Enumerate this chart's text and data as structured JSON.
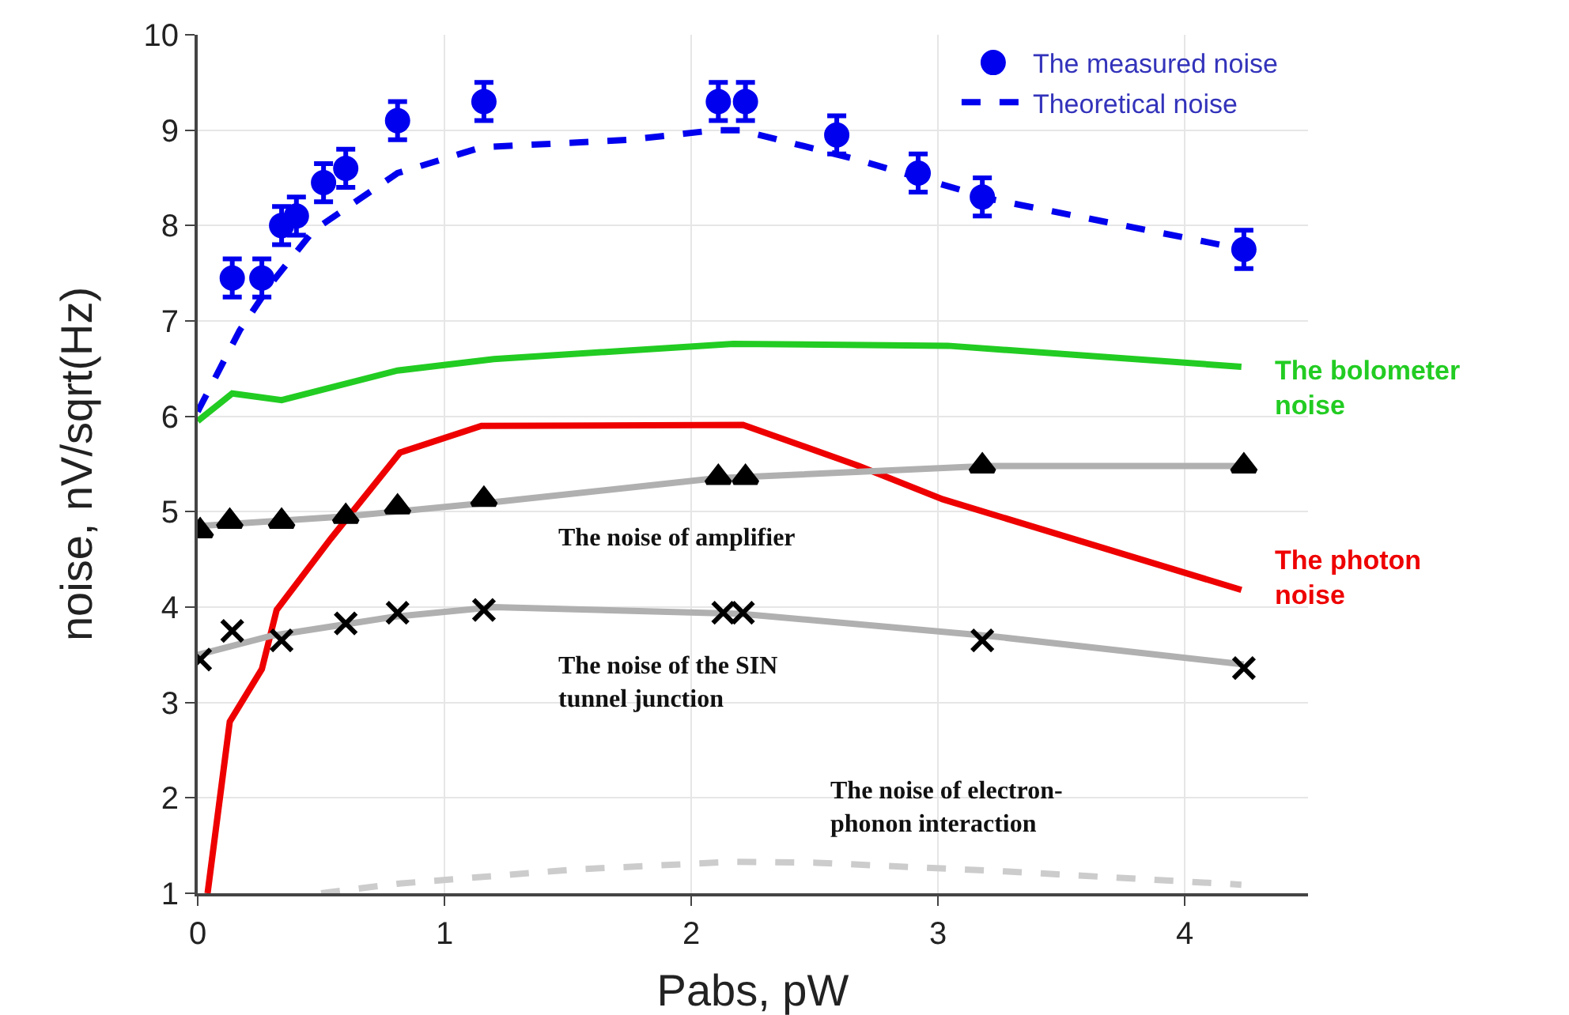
{
  "chart_data": {
    "type": "line",
    "xlabel": "Pabs, pW",
    "ylabel": "noise, nV/sqrt(Hz)",
    "xlim": [
      0,
      4.5
    ],
    "xticks": [
      0,
      1,
      2,
      3,
      4
    ],
    "ylim": [
      1,
      10
    ],
    "yticks": [
      1,
      2,
      3,
      4,
      5,
      6,
      7,
      8,
      9,
      10
    ],
    "grid": true,
    "legend": "top right",
    "series": [
      {
        "name": "The measured noise",
        "type": "scatter",
        "marker": "circle",
        "color": "#0000ee",
        "x": [
          0.14,
          0.26,
          0.34,
          0.4,
          0.51,
          0.6,
          0.81,
          1.16,
          2.11,
          2.22,
          2.59,
          2.92,
          3.18,
          4.24
        ],
        "values": [
          7.45,
          7.45,
          8.0,
          8.1,
          8.45,
          8.6,
          9.1,
          9.3,
          9.3,
          9.3,
          8.95,
          8.55,
          8.3,
          7.75
        ],
        "errors": [
          0.2,
          0.2,
          0.2,
          0.2,
          0.2,
          0.2,
          0.2,
          0.2,
          0.2,
          0.2,
          0.2,
          0.2,
          0.2,
          0.2
        ]
      },
      {
        "name": "Theoretical noise",
        "type": "line",
        "line_style": "dashed",
        "color": "#0000ee",
        "x": [
          0,
          0.17,
          0.3,
          0.47,
          0.64,
          0.81,
          1.15,
          1.75,
          2.1,
          2.2,
          2.66,
          3.23,
          4.24
        ],
        "values": [
          6.05,
          6.9,
          7.4,
          7.95,
          8.25,
          8.55,
          8.82,
          8.9,
          9.0,
          9.0,
          8.7,
          8.27,
          7.75
        ]
      },
      {
        "name": "The bolometer noise",
        "type": "line",
        "color": "#22cc22",
        "x": [
          0,
          0.14,
          0.34,
          0.81,
          1.2,
          2.17,
          3.04,
          4.23
        ],
        "values": [
          5.95,
          6.24,
          6.17,
          6.48,
          6.6,
          6.76,
          6.74,
          6.52
        ]
      },
      {
        "name": "The photon noise",
        "type": "line",
        "color": "#ee0000",
        "x": [
          0.04,
          0.13,
          0.26,
          0.32,
          0.54,
          0.82,
          1.15,
          2.21,
          2.68,
          3.02,
          4.23
        ],
        "values": [
          1.0,
          2.8,
          3.35,
          3.97,
          4.72,
          5.62,
          5.9,
          5.91,
          5.48,
          5.13,
          4.18
        ]
      },
      {
        "name": "The noise of amplifier",
        "type": "line",
        "color": "#b0b0b0",
        "x": [
          0,
          0.6,
          1.2,
          2.1,
          3.2,
          4.24
        ],
        "values": [
          4.85,
          4.95,
          5.1,
          5.35,
          5.48,
          5.48
        ]
      },
      {
        "type": "scatter",
        "marker": "triangle",
        "color": "#000000",
        "x": [
          0.01,
          0.13,
          0.34,
          0.6,
          0.81,
          1.16,
          2.11,
          2.22,
          3.18,
          4.24
        ],
        "values": [
          4.8,
          4.9,
          4.9,
          4.95,
          5.05,
          5.13,
          5.36,
          5.36,
          5.48,
          5.48
        ]
      },
      {
        "name": "The noise of the SIN tunnel junction",
        "type": "line",
        "color": "#b0b0b0",
        "x": [
          0,
          0.3,
          0.8,
          1.2,
          2.2,
          3.2,
          4.24
        ],
        "values": [
          3.5,
          3.7,
          3.9,
          4.0,
          3.93,
          3.7,
          3.4
        ]
      },
      {
        "type": "scatter",
        "marker": "cross",
        "color": "#000000",
        "x": [
          0.01,
          0.14,
          0.34,
          0.6,
          0.81,
          1.16,
          2.13,
          2.21,
          3.18,
          4.24
        ],
        "values": [
          3.45,
          3.75,
          3.65,
          3.83,
          3.94,
          3.97,
          3.94,
          3.94,
          3.65,
          3.36
        ]
      },
      {
        "name": "The noise of electron-phonon interaction",
        "type": "line",
        "line_style": "dashed",
        "color": "#cccccc",
        "x": [
          0.5,
          0.81,
          1.53,
          2.17,
          2.51,
          3.27,
          4.23
        ],
        "values": [
          1.0,
          1.1,
          1.25,
          1.33,
          1.32,
          1.23,
          1.09
        ]
      }
    ]
  }
}
